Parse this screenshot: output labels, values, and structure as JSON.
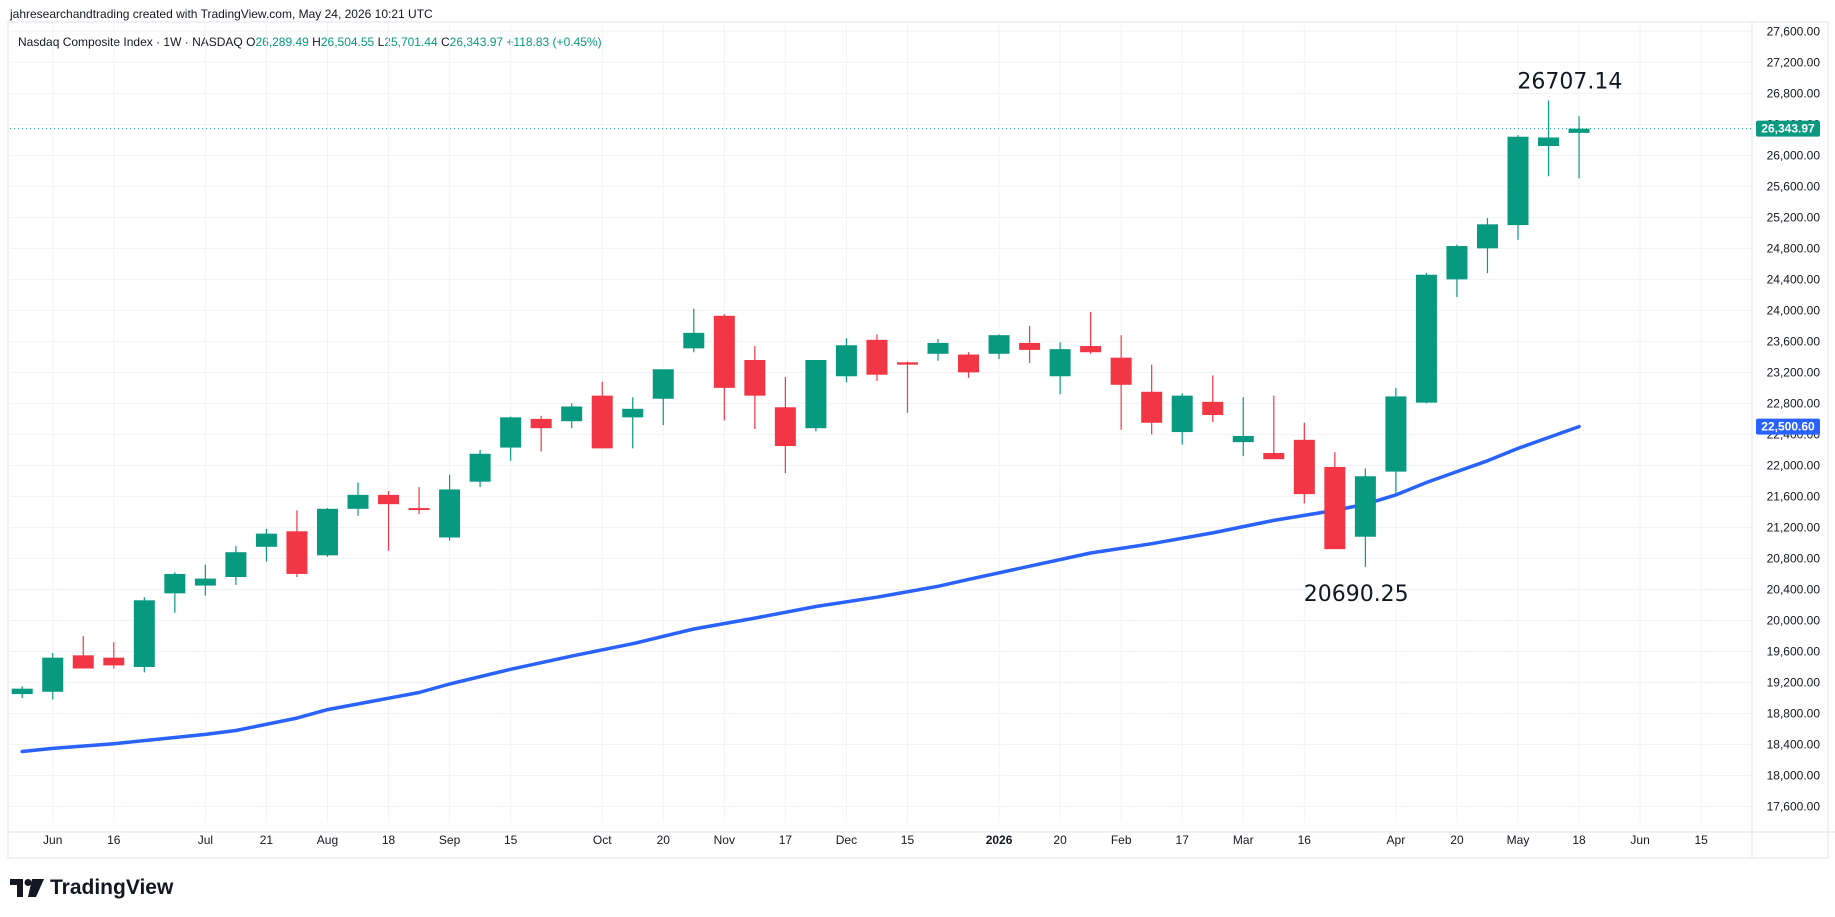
{
  "header": {
    "attribution": "jahresearchandtrading created with TradingView.com, May 24, 2026 10:21 UTC"
  },
  "legend": {
    "symbol": "Nasdaq Composite Index · 1W · NASDAQ",
    "open_label": "O",
    "open": "26,289.49",
    "high_label": "H",
    "high": "26,504.55",
    "low_label": "L",
    "low": "25,701.44",
    "close_label": "C",
    "close": "26,343.97",
    "change": "+118.83 (+0.45%)"
  },
  "footer": {
    "brand": "TradingView"
  },
  "colors": {
    "up": "#089981",
    "down": "#f23645",
    "ma": "#2962ff",
    "grid": "#f0f3fa",
    "axis_border": "#e0e3eb"
  },
  "chart_data": {
    "type": "candlestick",
    "symbol": "Nasdaq Composite Index",
    "interval": "1W",
    "exchange": "NASDAQ",
    "y_axis": {
      "ticks": [
        17600,
        18000,
        18400,
        18800,
        19200,
        19600,
        20000,
        20400,
        20800,
        21200,
        21600,
        22000,
        22400,
        22800,
        23200,
        23600,
        24000,
        24400,
        24800,
        25200,
        25600,
        26000,
        26400,
        26800,
        27200,
        27600
      ],
      "tick_labels": [
        "17,600.00",
        "18,000.00",
        "18,400.00",
        "18,800.00",
        "19,200.00",
        "19,600.00",
        "20,000.00",
        "20,400.00",
        "20,800.00",
        "21,200.00",
        "21,600.00",
        "22,000.00",
        "22,400.00",
        "22,800.00",
        "23,200.00",
        "23,600.00",
        "24,000.00",
        "24,400.00",
        "24,800.00",
        "25,200.00",
        "25,600.00",
        "26,000.00",
        "26,400.00",
        "26,800.00",
        "27,200.00",
        "27,600.00"
      ],
      "range": [
        17400,
        27720
      ],
      "position": "right"
    },
    "x_axis": {
      "ticks": [
        {
          "week": 1,
          "label": "Jun",
          "bold": false
        },
        {
          "week": 3,
          "label": "16",
          "bold": false
        },
        {
          "week": 6,
          "label": "Jul",
          "bold": false
        },
        {
          "week": 8,
          "label": "21",
          "bold": false
        },
        {
          "week": 10,
          "label": "Aug",
          "bold": false
        },
        {
          "week": 12,
          "label": "18",
          "bold": false
        },
        {
          "week": 14,
          "label": "Sep",
          "bold": false
        },
        {
          "week": 16,
          "label": "15",
          "bold": false
        },
        {
          "week": 19,
          "label": "Oct",
          "bold": false
        },
        {
          "week": 21,
          "label": "20",
          "bold": false
        },
        {
          "week": 23,
          "label": "Nov",
          "bold": false
        },
        {
          "week": 25,
          "label": "17",
          "bold": false
        },
        {
          "week": 27,
          "label": "Dec",
          "bold": false
        },
        {
          "week": 29,
          "label": "15",
          "bold": false
        },
        {
          "week": 32,
          "label": "2026",
          "bold": true
        },
        {
          "week": 34,
          "label": "20",
          "bold": false
        },
        {
          "week": 36,
          "label": "Feb",
          "bold": false
        },
        {
          "week": 38,
          "label": "17",
          "bold": false
        },
        {
          "week": 40,
          "label": "Mar",
          "bold": false
        },
        {
          "week": 42,
          "label": "16",
          "bold": false
        },
        {
          "week": 45,
          "label": "Apr",
          "bold": false
        },
        {
          "week": 47,
          "label": "20",
          "bold": false
        },
        {
          "week": 49,
          "label": "May",
          "bold": false
        },
        {
          "week": 51,
          "label": "18",
          "bold": false
        },
        {
          "week": 53,
          "label": "Jun",
          "bold": false
        },
        {
          "week": 55,
          "label": "15",
          "bold": false
        }
      ],
      "week_range": [
        -0.4,
        56.6
      ]
    },
    "candles": [
      {
        "o": 19050,
        "h": 19150,
        "l": 19000,
        "c": 19120
      },
      {
        "o": 19080,
        "h": 19580,
        "l": 18980,
        "c": 19520
      },
      {
        "o": 19550,
        "h": 19800,
        "l": 19380,
        "c": 19380
      },
      {
        "o": 19520,
        "h": 19720,
        "l": 19380,
        "c": 19420
      },
      {
        "o": 19400,
        "h": 20300,
        "l": 19330,
        "c": 20260
      },
      {
        "o": 20350,
        "h": 20620,
        "l": 20100,
        "c": 20600
      },
      {
        "o": 20450,
        "h": 20720,
        "l": 20320,
        "c": 20540
      },
      {
        "o": 20560,
        "h": 20960,
        "l": 20460,
        "c": 20880
      },
      {
        "o": 20950,
        "h": 21180,
        "l": 20760,
        "c": 21120
      },
      {
        "o": 21150,
        "h": 21420,
        "l": 20560,
        "c": 20600
      },
      {
        "o": 20840,
        "h": 21450,
        "l": 20820,
        "c": 21440
      },
      {
        "o": 21440,
        "h": 21780,
        "l": 21350,
        "c": 21620
      },
      {
        "o": 21620,
        "h": 21670,
        "l": 20900,
        "c": 21500
      },
      {
        "o": 21450,
        "h": 21720,
        "l": 21370,
        "c": 21440
      },
      {
        "o": 21070,
        "h": 21880,
        "l": 21030,
        "c": 21690
      },
      {
        "o": 21790,
        "h": 22200,
        "l": 21720,
        "c": 22150
      },
      {
        "o": 22230,
        "h": 22630,
        "l": 22060,
        "c": 22620
      },
      {
        "o": 22600,
        "h": 22640,
        "l": 22180,
        "c": 22480
      },
      {
        "o": 22570,
        "h": 22800,
        "l": 22480,
        "c": 22760
      },
      {
        "o": 22900,
        "h": 23080,
        "l": 22220,
        "c": 22220
      },
      {
        "o": 22620,
        "h": 22880,
        "l": 22220,
        "c": 22730
      },
      {
        "o": 22860,
        "h": 23220,
        "l": 22520,
        "c": 23240
      },
      {
        "o": 23510,
        "h": 24020,
        "l": 23460,
        "c": 23710
      },
      {
        "o": 23930,
        "h": 23950,
        "l": 22580,
        "c": 23000
      },
      {
        "o": 23360,
        "h": 23540,
        "l": 22470,
        "c": 22900
      },
      {
        "o": 22750,
        "h": 23140,
        "l": 21900,
        "c": 22250
      },
      {
        "o": 22480,
        "h": 23360,
        "l": 22440,
        "c": 23360
      },
      {
        "o": 23150,
        "h": 23640,
        "l": 23070,
        "c": 23550
      },
      {
        "o": 23620,
        "h": 23690,
        "l": 23090,
        "c": 23170
      },
      {
        "o": 23330,
        "h": 23340,
        "l": 22680,
        "c": 23300
      },
      {
        "o": 23440,
        "h": 23630,
        "l": 23350,
        "c": 23580
      },
      {
        "o": 23430,
        "h": 23460,
        "l": 23130,
        "c": 23200
      },
      {
        "o": 23440,
        "h": 23690,
        "l": 23370,
        "c": 23680
      },
      {
        "o": 23580,
        "h": 23800,
        "l": 23320,
        "c": 23490
      },
      {
        "o": 23150,
        "h": 23590,
        "l": 22920,
        "c": 23500
      },
      {
        "o": 23540,
        "h": 23980,
        "l": 23440,
        "c": 23460
      },
      {
        "o": 23390,
        "h": 23680,
        "l": 22460,
        "c": 23040
      },
      {
        "o": 22950,
        "h": 23300,
        "l": 22400,
        "c": 22550
      },
      {
        "o": 22430,
        "h": 22930,
        "l": 22270,
        "c": 22900
      },
      {
        "o": 22820,
        "h": 23160,
        "l": 22560,
        "c": 22650
      },
      {
        "o": 22300,
        "h": 22880,
        "l": 22120,
        "c": 22380
      },
      {
        "o": 22160,
        "h": 22900,
        "l": 22100,
        "c": 22080
      },
      {
        "o": 22330,
        "h": 22550,
        "l": 21510,
        "c": 21630
      },
      {
        "o": 21980,
        "h": 22170,
        "l": 20950,
        "c": 20920
      },
      {
        "o": 21080,
        "h": 21960,
        "l": 20690.25,
        "c": 21860
      },
      {
        "o": 21920,
        "h": 23000,
        "l": 21640,
        "c": 22890
      },
      {
        "o": 22810,
        "h": 24480,
        "l": 22800,
        "c": 24460
      },
      {
        "o": 24400,
        "h": 24850,
        "l": 24170,
        "c": 24830
      },
      {
        "o": 24800,
        "h": 25190,
        "l": 24480,
        "c": 25110
      },
      {
        "o": 25100,
        "h": 26260,
        "l": 24910,
        "c": 26240
      },
      {
        "o": 26120,
        "h": 26707.14,
        "l": 25730,
        "c": 26230
      },
      {
        "o": 26289.49,
        "h": 26504.55,
        "l": 25701.44,
        "c": 26343.97
      }
    ],
    "moving_average": {
      "label": "",
      "last_value": "22,500.60",
      "points": [
        [
          0,
          18310
        ],
        [
          1,
          18350
        ],
        [
          3,
          18410
        ],
        [
          6,
          18530
        ],
        [
          7,
          18580
        ],
        [
          9,
          18740
        ],
        [
          10,
          18850
        ],
        [
          13,
          19070
        ],
        [
          14,
          19180
        ],
        [
          16,
          19370
        ],
        [
          18,
          19540
        ],
        [
          20,
          19700
        ],
        [
          22,
          19890
        ],
        [
          24,
          20030
        ],
        [
          26,
          20180
        ],
        [
          28,
          20300
        ],
        [
          30,
          20440
        ],
        [
          31,
          20530
        ],
        [
          33,
          20700
        ],
        [
          35,
          20870
        ],
        [
          37,
          20990
        ],
        [
          39,
          21130
        ],
        [
          41,
          21290
        ],
        [
          43,
          21420
        ],
        [
          44,
          21500
        ],
        [
          45,
          21620
        ],
        [
          46,
          21780
        ],
        [
          47,
          21920
        ],
        [
          48,
          22060
        ],
        [
          49,
          22220
        ],
        [
          50,
          22360
        ],
        [
          51,
          22500.6
        ]
      ]
    },
    "last_price_label": "26,343.97",
    "annotations": [
      {
        "text": "26707.14",
        "week": 50.7,
        "price": 26707.14,
        "position": "above"
      },
      {
        "text": "20690.25",
        "week": 43.7,
        "price": 20690.25,
        "position": "below"
      }
    ]
  }
}
